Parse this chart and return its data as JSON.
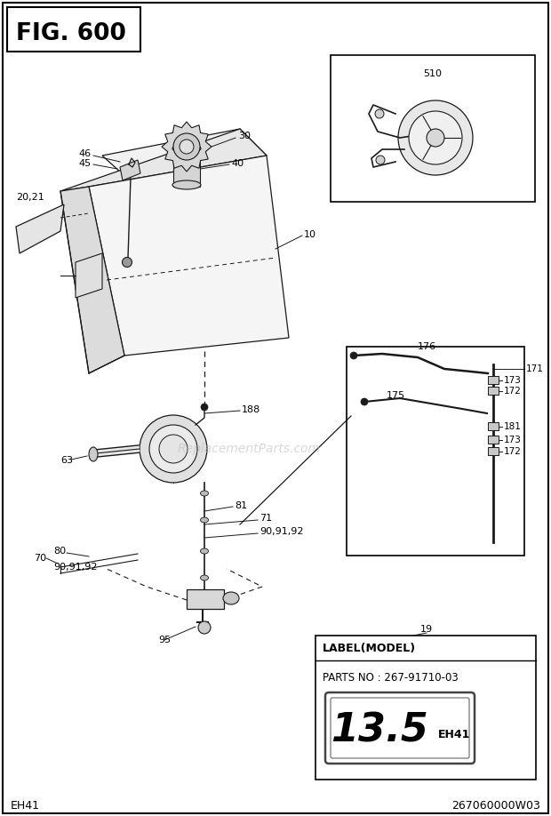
{
  "title": "FIG. 600",
  "bg_color": "#ffffff",
  "fig_width": 6.2,
  "fig_height": 9.18,
  "footer_left": "EH41",
  "footer_right": "267060000W03",
  "watermark": "ReplacementParts.com",
  "label_title": "LABEL(MODEL)",
  "label_parts": "PARTS NO : 267-91710-03",
  "label_badge_big": "13.5",
  "label_badge_small": "EH41"
}
